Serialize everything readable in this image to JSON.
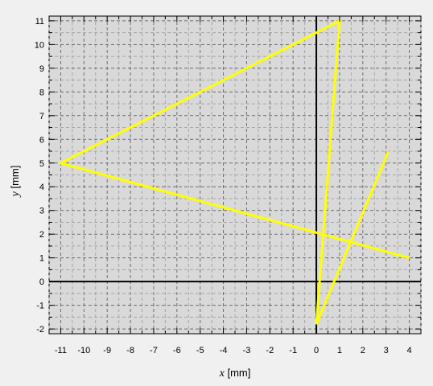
{
  "chart_data": {
    "type": "line",
    "xlabel": {
      "var": "x",
      "unit": " [mm]"
    },
    "ylabel": {
      "var": "y",
      "unit": " [mm]"
    },
    "xlim": [
      -11.5,
      4.5
    ],
    "ylim": [
      -2.2,
      11.2
    ],
    "x_ticks": [
      -11,
      -10,
      -9,
      -8,
      -7,
      -6,
      -5,
      -4,
      -3,
      -2,
      -1,
      0,
      1,
      2,
      3,
      4
    ],
    "y_ticks": [
      -2,
      -1,
      0,
      1,
      2,
      3,
      4,
      5,
      6,
      7,
      8,
      9,
      10,
      11
    ],
    "grid": true,
    "series": [
      {
        "color": "#ffff00",
        "x": [
          3.1,
          0,
          1,
          -11,
          4
        ],
        "y": [
          5.5,
          -1.8,
          11,
          5,
          1
        ]
      }
    ]
  }
}
